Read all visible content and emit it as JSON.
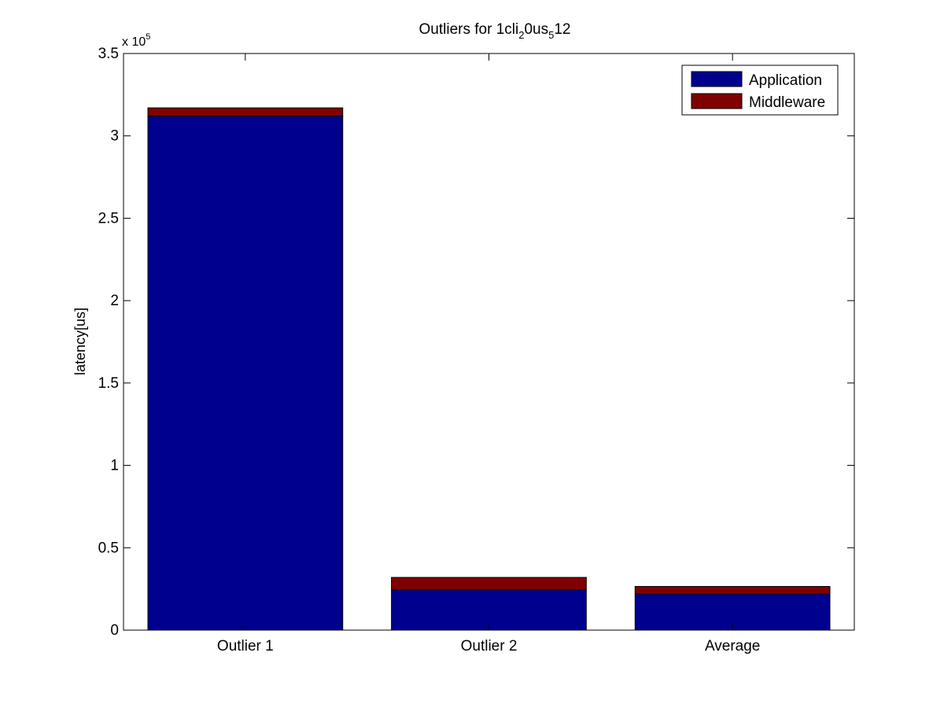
{
  "chart_data": {
    "type": "bar",
    "stacked": true,
    "title": {
      "prefix": "Outliers for 1cli",
      "sub1": "2",
      "mid": "0us",
      "sub2": "5",
      "suffix": "12"
    },
    "xlabel": "",
    "ylabel": "latency[us]",
    "categories": [
      "Outlier 1",
      "Outlier 2",
      "Average"
    ],
    "series": [
      {
        "name": "Application",
        "color": "#00008f",
        "values": [
          312000,
          24500,
          22000
        ]
      },
      {
        "name": "Middleware",
        "color": "#800000",
        "values": [
          5000,
          7500,
          4500
        ]
      }
    ],
    "ylim": [
      0,
      350000
    ],
    "yticks": [
      0,
      50000,
      100000,
      150000,
      200000,
      250000,
      300000,
      350000
    ],
    "ytick_labels": [
      "0",
      "0.5",
      "1",
      "1.5",
      "2",
      "2.5",
      "3",
      "3.5"
    ],
    "y_multiplier": {
      "base": "x 10",
      "exponent": "5"
    },
    "grid": false,
    "legend_position": "top-right"
  }
}
